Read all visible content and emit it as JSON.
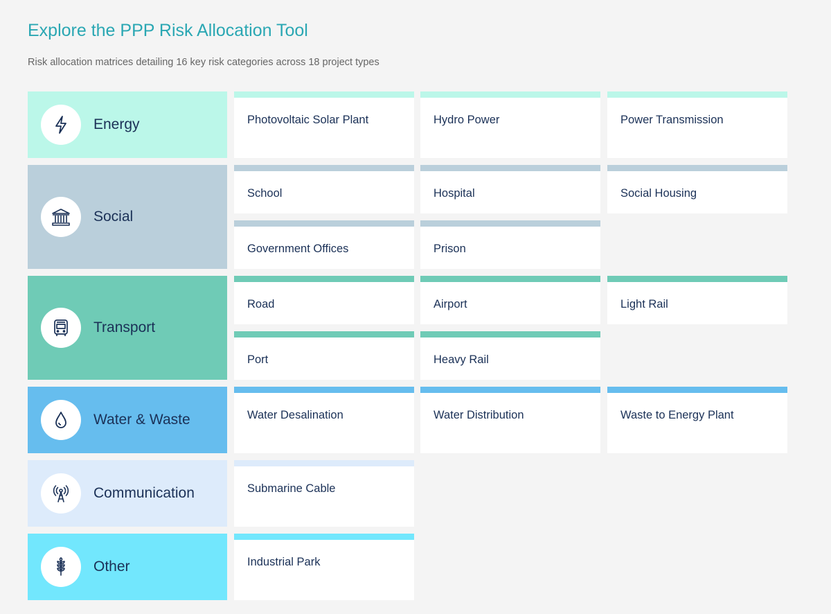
{
  "header": {
    "title": "Explore the PPP Risk Allocation Tool",
    "subtitle": "Risk allocation matrices detailing 16 key risk categories across 18 project types"
  },
  "categories": [
    {
      "label": "Energy",
      "icon": "lightning-icon",
      "color": "#bbf7e9",
      "projects": [
        "Photovoltaic Solar Plant",
        "Hydro Power",
        "Power Transmission"
      ]
    },
    {
      "label": "Social",
      "icon": "government-building-icon",
      "color": "#bacfdb",
      "projects": [
        "School",
        "Hospital",
        "Social Housing",
        "Government Offices",
        "Prison"
      ]
    },
    {
      "label": "Transport",
      "icon": "bus-icon",
      "color": "#6fcbb6",
      "projects": [
        "Road",
        "Airport",
        "Light Rail",
        "Port",
        "Heavy Rail"
      ]
    },
    {
      "label": "Water & Waste",
      "icon": "water-drop-icon",
      "color": "#66bdee",
      "projects": [
        "Water Desalination",
        "Water Distribution",
        "Waste to Energy Plant"
      ]
    },
    {
      "label": "Communication",
      "icon": "antenna-tower-icon",
      "color": "#ddebfb",
      "projects": [
        "Submarine Cable"
      ]
    },
    {
      "label": "Other",
      "icon": "wheat-icon",
      "color": "#72e7fd",
      "projects": [
        "Industrial Park"
      ]
    }
  ]
}
